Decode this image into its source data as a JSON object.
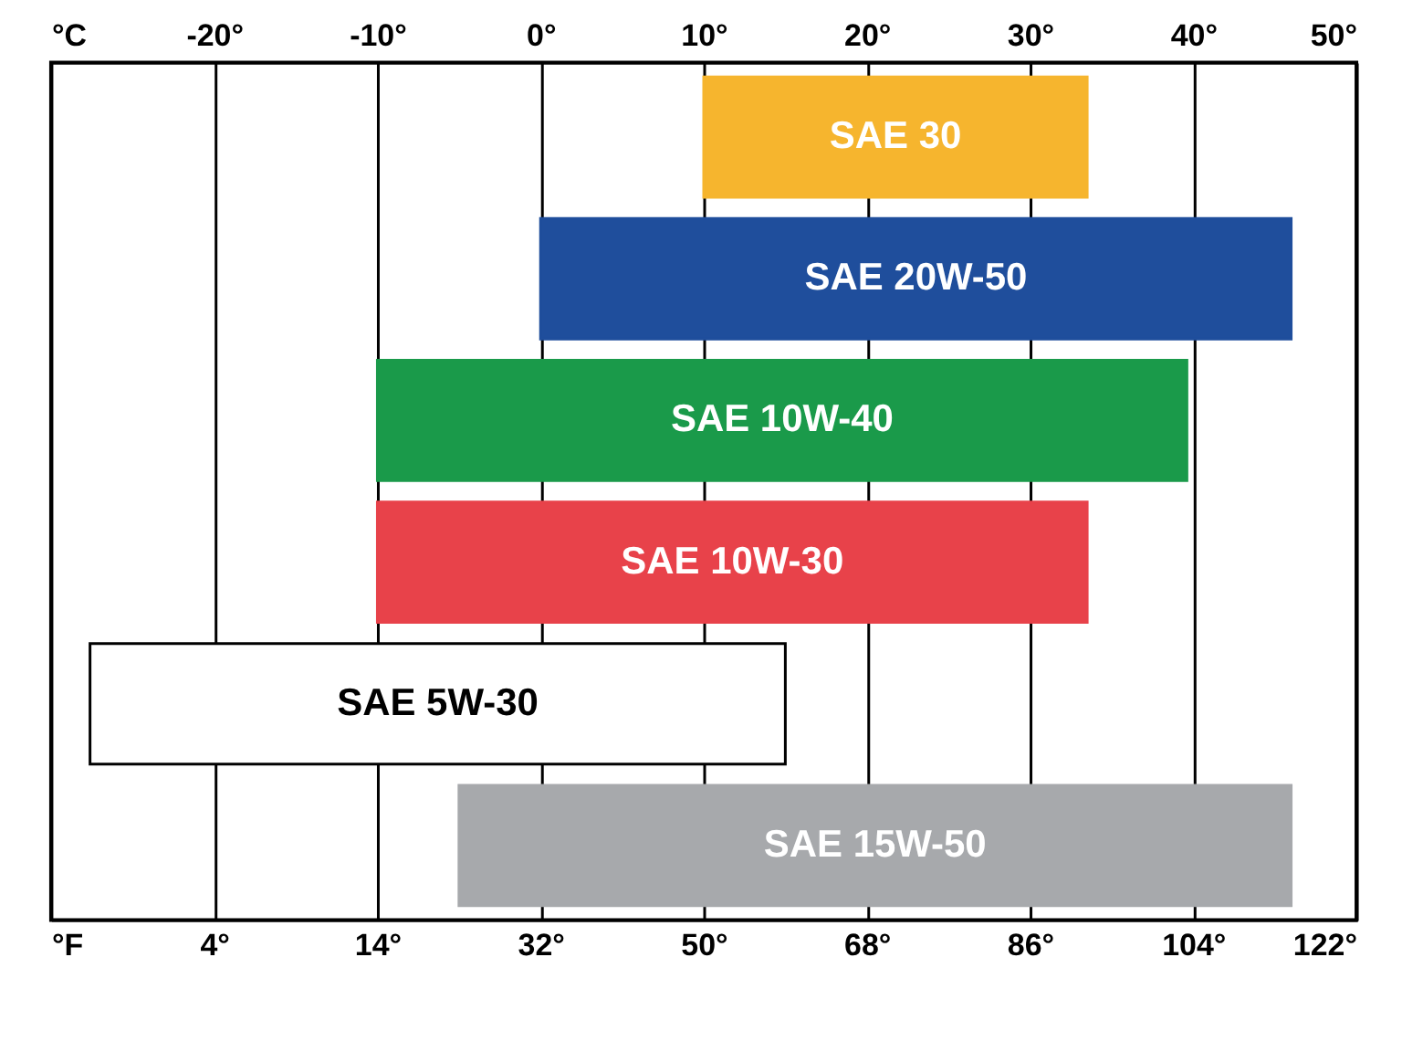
{
  "chart_data": {
    "type": "bar",
    "orientation": "horizontal",
    "categories": [
      "SAE 30",
      "SAE 20W-50",
      "SAE 10W-40",
      "SAE 10W-30",
      "SAE 5W-30",
      "SAE 15W-50"
    ],
    "base": [
      50,
      32,
      14,
      14,
      -17.7,
      23
    ],
    "values": [
      42.3,
      82.8,
      89.3,
      78.3,
      76.7,
      91.8
    ],
    "colors": [
      "#f6b52e",
      "#1f4e9c",
      "#1a9a4a",
      "#e8424a",
      "#ffffff",
      "#a7a9ac"
    ],
    "xlim": [
      -22,
      122
    ],
    "xticks": [
      {
        "value": -22,
        "label": "°F"
      },
      {
        "value": -4,
        "label": "4°"
      },
      {
        "value": 14,
        "label": "14°"
      },
      {
        "value": 32,
        "label": "32°"
      },
      {
        "value": 50,
        "label": "50°"
      },
      {
        "value": 68,
        "label": "68°"
      },
      {
        "value": 86,
        "label": "86°"
      },
      {
        "value": 104,
        "label": "104°"
      },
      {
        "value": 122,
        "label": "122°"
      }
    ],
    "x2lim": [
      -30,
      50
    ],
    "x2ticks": [
      {
        "value": -30,
        "label": "°C"
      },
      {
        "value": -20,
        "label": "-20°"
      },
      {
        "value": -10,
        "label": "-10°"
      },
      {
        "value": 0,
        "label": "0°"
      },
      {
        "value": 10,
        "label": "10°"
      },
      {
        "value": 20,
        "label": "20°"
      },
      {
        "value": 30,
        "label": "30°"
      },
      {
        "value": 40,
        "label": "40°"
      },
      {
        "value": 50,
        "label": "50°"
      }
    ],
    "grid": "x",
    "tick_labels": "x"
  }
}
